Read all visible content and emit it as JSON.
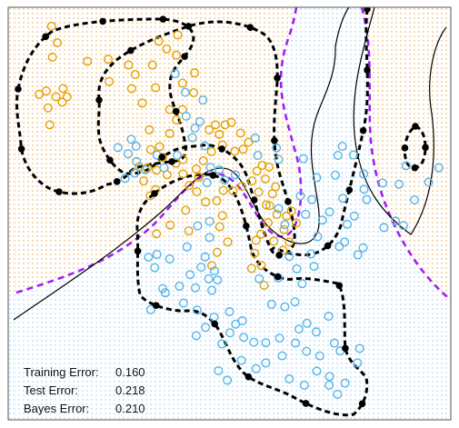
{
  "colors": {
    "orange": "#E69F00",
    "blue": "#56B4E9",
    "purple": "#A020F0",
    "black": "#000000",
    "orange_grid": "#E8A33D",
    "blue_grid": "#8EC8EE"
  },
  "error_panel": {
    "rows": [
      {
        "label": "Training Error:",
        "value": "0.160"
      },
      {
        "label": "Test Error:",
        "value": "0.218"
      },
      {
        "label": "Bayes Error:",
        "value": "0.210"
      }
    ]
  },
  "chart_data": {
    "type": "scatter",
    "title": "",
    "xlabel": "",
    "ylabel": "",
    "xlim": [
      0,
      100
    ],
    "ylim": [
      0,
      100
    ],
    "axes_visible": false,
    "grid": false,
    "background": "dotted class-region grid",
    "series": [
      {
        "class": "orange",
        "marker": "open-circle",
        "points": [
          [
            9.8,
            95.4
          ],
          [
            11.1,
            91.4
          ],
          [
            10.0,
            87.9
          ],
          [
            8.6,
            79.7
          ],
          [
            9.0,
            75.6
          ],
          [
            10.8,
            78.3
          ],
          [
            7.0,
            78.9
          ],
          [
            12.4,
            80.3
          ],
          [
            13.3,
            78.3
          ],
          [
            12.2,
            77.0
          ],
          [
            9.4,
            71.5
          ],
          [
            17.9,
            86.9
          ],
          [
            22.6,
            87.4
          ],
          [
            22.8,
            82.0
          ],
          [
            27.2,
            86.0
          ],
          [
            28.7,
            83.7
          ],
          [
            27.9,
            80.3
          ],
          [
            30.3,
            76.8
          ],
          [
            33.3,
            80.5
          ],
          [
            32.6,
            86.0
          ],
          [
            34.0,
            91.8
          ],
          [
            35.8,
            89.9
          ],
          [
            38.0,
            88.4
          ],
          [
            38.3,
            93.3
          ],
          [
            42.1,
            84.1
          ],
          [
            39.4,
            81.6
          ],
          [
            41.9,
            79.3
          ],
          [
            36.5,
            75.2
          ],
          [
            38.0,
            72.7
          ],
          [
            39.4,
            75.2
          ],
          [
            36.5,
            69.4
          ],
          [
            34.9,
            63.6
          ],
          [
            34.2,
            66.2
          ],
          [
            32.2,
            65.5
          ],
          [
            31.9,
            70.3
          ],
          [
            33.5,
            60.5
          ],
          [
            31.4,
            61.0
          ],
          [
            29.6,
            61.4
          ],
          [
            30.6,
            57.9
          ],
          [
            32.1,
            54.3
          ],
          [
            33.3,
            55.8
          ],
          [
            35.9,
            59.4
          ],
          [
            37.9,
            62.2
          ],
          [
            39.5,
            63.1
          ],
          [
            40.9,
            56.8
          ],
          [
            39.5,
            59.6
          ],
          [
            42.5,
            60.8
          ],
          [
            45.4,
            70.3
          ],
          [
            46.8,
            71.5
          ],
          [
            47.7,
            69.2
          ],
          [
            49.0,
            71.5
          ],
          [
            50.4,
            72.1
          ],
          [
            52.5,
            69.5
          ],
          [
            54.3,
            67.3
          ],
          [
            53.1,
            65.6
          ],
          [
            51.2,
            65.1
          ],
          [
            48.4,
            66.6
          ],
          [
            45.9,
            65.0
          ],
          [
            44.1,
            62.8
          ],
          [
            43.0,
            58.8
          ],
          [
            42.6,
            55.3
          ],
          [
            44.6,
            52.8
          ],
          [
            47.1,
            53.1
          ],
          [
            48.6,
            55.6
          ],
          [
            50.8,
            55.5
          ],
          [
            52.8,
            56.6
          ],
          [
            55.1,
            57.9
          ],
          [
            56.2,
            60.3
          ],
          [
            57.4,
            61.7
          ],
          [
            58.9,
            61.3
          ],
          [
            58.1,
            58.4
          ],
          [
            56.6,
            55.2
          ],
          [
            58.3,
            52.1
          ],
          [
            59.7,
            54.8
          ],
          [
            60.4,
            56.5
          ],
          [
            59.1,
            51.9
          ],
          [
            60.7,
            49.8
          ],
          [
            58.7,
            47.8
          ],
          [
            57.1,
            45.0
          ],
          [
            56.0,
            43.5
          ],
          [
            60.0,
            43.3
          ],
          [
            62.3,
            46.1
          ],
          [
            62.9,
            49.4
          ],
          [
            63.5,
            43.1
          ],
          [
            62.1,
            41.1
          ],
          [
            65.1,
            47.7
          ],
          [
            64.0,
            50.6
          ],
          [
            55.0,
            36.7
          ],
          [
            57.8,
            32.6
          ],
          [
            57.2,
            37.4
          ],
          [
            55.7,
            40.4
          ],
          [
            46.0,
            37.4
          ],
          [
            47.2,
            40.6
          ],
          [
            49.6,
            43.1
          ],
          [
            47.8,
            46.8
          ],
          [
            48.4,
            49.5
          ],
          [
            40.8,
            45.8
          ],
          [
            40.1,
            50.8
          ],
          [
            36.6,
            47.2
          ],
          [
            33.5,
            45.1
          ]
        ]
      },
      {
        "class": "blue",
        "marker": "open-circle",
        "points": [
          [
            37.7,
            83.9
          ],
          [
            40.0,
            79.4
          ],
          [
            44.0,
            77.5
          ],
          [
            43.3,
            72.3
          ],
          [
            40.2,
            73.6
          ],
          [
            41.6,
            68.4
          ],
          [
            44.4,
            66.4
          ],
          [
            38.2,
            64.1
          ],
          [
            35.2,
            61.1
          ],
          [
            33.6,
            64.2
          ],
          [
            31.0,
            60.6
          ],
          [
            29.0,
            62.6
          ],
          [
            27.1,
            64.5
          ],
          [
            28.9,
            66.3
          ],
          [
            24.8,
            66.0
          ],
          [
            27.8,
            68.0
          ],
          [
            28.6,
            59.8
          ],
          [
            26.4,
            58.5
          ],
          [
            42.2,
            70.7
          ],
          [
            45.7,
            61.2
          ],
          [
            47.7,
            60.6
          ],
          [
            48.9,
            58.1
          ],
          [
            51.3,
            59.4
          ],
          [
            44.9,
            57.5
          ],
          [
            56.4,
            64.1
          ],
          [
            55.8,
            68.3
          ],
          [
            60.6,
            65.9
          ],
          [
            61.1,
            63.1
          ],
          [
            66.7,
            63.3
          ],
          [
            69.7,
            58.7
          ],
          [
            68.6,
            53.4
          ],
          [
            67.2,
            49.8
          ],
          [
            66.0,
            54.3
          ],
          [
            71.0,
            48.4
          ],
          [
            69.9,
            44.4
          ],
          [
            72.6,
            50.4
          ],
          [
            73.9,
            59.3
          ],
          [
            74.5,
            64.1
          ],
          [
            75.5,
            66.3
          ],
          [
            78.0,
            64.2
          ],
          [
            80.3,
            59.6
          ],
          [
            80.4,
            55.9
          ],
          [
            81.0,
            53.4
          ],
          [
            78.2,
            49.4
          ],
          [
            76.6,
            47.4
          ],
          [
            75.6,
            53.7
          ],
          [
            84.9,
            46.6
          ],
          [
            87.5,
            48.2
          ],
          [
            89.3,
            47.1
          ],
          [
            91.8,
            53.3
          ],
          [
            95.0,
            57.6
          ],
          [
            97.3,
            61.1
          ],
          [
            89.9,
            61.6
          ],
          [
            88.3,
            57.1
          ],
          [
            84.6,
            57.4
          ],
          [
            74.8,
            42.0
          ],
          [
            79.0,
            40.0
          ],
          [
            80.2,
            41.7
          ],
          [
            76.0,
            43.1
          ],
          [
            62.5,
            47.3
          ],
          [
            61.1,
            51.2
          ],
          [
            56.7,
            34.2
          ],
          [
            61.0,
            34.4
          ],
          [
            65.2,
            36.6
          ],
          [
            63.5,
            39.6
          ],
          [
            68.4,
            40.2
          ],
          [
            69.1,
            37.2
          ],
          [
            59.5,
            28.0
          ],
          [
            62.5,
            27.4
          ],
          [
            64.8,
            28.6
          ],
          [
            66.4,
            33.0
          ],
          [
            65.7,
            22.0
          ],
          [
            67.5,
            23.4
          ],
          [
            69.6,
            21.3
          ],
          [
            72.4,
            25.1
          ],
          [
            73.7,
            18.6
          ],
          [
            70.4,
            15.5
          ],
          [
            67.4,
            16.6
          ],
          [
            64.9,
            18.6
          ],
          [
            61.3,
            19.8
          ],
          [
            58.2,
            18.7
          ],
          [
            55.5,
            18.8
          ],
          [
            53.2,
            20.0
          ],
          [
            51.4,
            23.2
          ],
          [
            52.9,
            24.0
          ],
          [
            50.0,
            26.2
          ],
          [
            50.1,
            21.1
          ],
          [
            48.3,
            18.4
          ],
          [
            47.5,
            11.9
          ],
          [
            49.5,
            9.6
          ],
          [
            52.7,
            14.4
          ],
          [
            56.0,
            12.4
          ],
          [
            58.2,
            13.8
          ],
          [
            61.9,
            15.5
          ],
          [
            63.5,
            9.9
          ],
          [
            66.9,
            8.4
          ],
          [
            69.7,
            11.8
          ],
          [
            72.5,
            8.4
          ],
          [
            74.4,
            6.2
          ],
          [
            76.1,
            8.9
          ],
          [
            78.9,
            13.8
          ],
          [
            79.4,
            17.3
          ],
          [
            75.0,
            16.7
          ],
          [
            72.6,
            10.5
          ],
          [
            42.5,
            20.4
          ],
          [
            44.6,
            22.4
          ],
          [
            46.5,
            24.9
          ],
          [
            42.7,
            26.6
          ],
          [
            39.6,
            28.3
          ],
          [
            35.5,
            30.8
          ],
          [
            34.9,
            31.8
          ],
          [
            32.2,
            26.7
          ],
          [
            38.7,
            32.4
          ],
          [
            41.1,
            35.2
          ],
          [
            43.6,
            37.0
          ],
          [
            40.4,
            41.9
          ],
          [
            36.5,
            39.0
          ],
          [
            33.6,
            40.1
          ],
          [
            31.7,
            39.4
          ],
          [
            33.1,
            36.9
          ],
          [
            42.8,
            47.0
          ],
          [
            45.5,
            48.1
          ],
          [
            45.5,
            44.2
          ],
          [
            44.5,
            39.5
          ],
          [
            46.6,
            36.1
          ],
          [
            47.3,
            33.9
          ],
          [
            46.0,
            31.4
          ],
          [
            42.3,
            32.0
          ],
          [
            45.3,
            34.2
          ]
        ]
      }
    ],
    "boundaries": [
      {
        "name": "",
        "style": "dashed",
        "color": "#000000",
        "description": "fitted decision boundary (black dashed) with knot points"
      },
      {
        "name": "",
        "style": "dashed",
        "color": "#A020F0",
        "description": "Bayes decision boundary (purple dashed)"
      },
      {
        "name": "",
        "style": "solid",
        "color": "#000000",
        "description": "solid black contour"
      }
    ]
  }
}
